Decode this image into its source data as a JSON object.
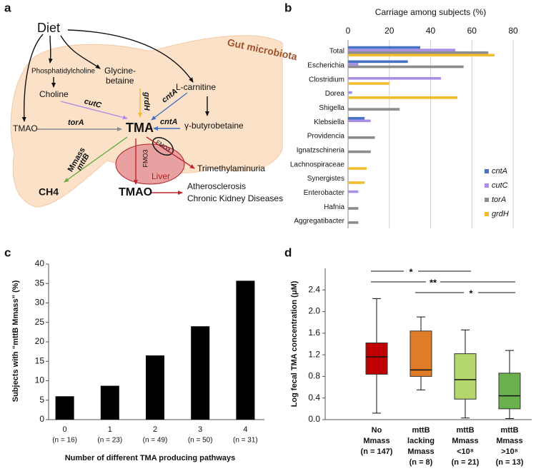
{
  "panels": [
    "a",
    "b",
    "c",
    "d"
  ],
  "diagram": {
    "nodes": [
      "Diet",
      "Gut microbiota",
      "Phosphatidylcholine",
      "Glycine-",
      "betaine",
      "Choline",
      "cutC",
      "grdH",
      "cntA",
      "L-carnitine",
      "γ-butyrobetaine",
      "TMAO",
      "torA",
      "TMA",
      "cntA",
      "Mmass",
      "mttB",
      "FMO3",
      "FMO3",
      "Liver",
      "Trimethylaminuria",
      "CH4",
      "TMAO",
      "Atherosclerosis",
      "Chronic Kidney Diseases"
    ]
  },
  "chart_data": [
    {
      "type": "bar",
      "orientation": "horizontal",
      "title": "Carriage among subjects (%)",
      "categories": [
        "Total",
        "Escherichia",
        "Clostridium",
        "Dorea",
        "Shigella",
        "Klebsiella",
        "Providencia",
        "Ignatzschineria",
        "Lachnospiraceae",
        "Synergistes",
        "Enterobacter",
        "Hafnia",
        "Aggregatibacter"
      ],
      "series": [
        {
          "name": "cntA",
          "color": "#4472c4",
          "values": [
            35,
            29,
            null,
            null,
            null,
            8,
            null,
            null,
            null,
            null,
            null,
            null,
            null
          ]
        },
        {
          "name": "cutC",
          "color": "#a98ee6",
          "values": [
            52,
            5,
            45,
            2,
            null,
            11,
            null,
            null,
            null,
            null,
            5,
            null,
            null
          ]
        },
        {
          "name": "torA",
          "color": "#8c8c8c",
          "values": [
            68,
            56,
            null,
            null,
            25,
            null,
            13,
            11,
            null,
            null,
            null,
            5,
            5
          ]
        },
        {
          "name": "grdH",
          "color": "#f2bc2c",
          "values": [
            71,
            null,
            20,
            53,
            null,
            null,
            null,
            null,
            9,
            8,
            null,
            null,
            null
          ]
        }
      ],
      "xlim": [
        0,
        80
      ],
      "xticks": [
        0,
        20,
        40,
        60,
        80
      ],
      "grid": true,
      "legend": "lower right"
    },
    {
      "type": "bar",
      "categories": [
        "0",
        "1",
        "2",
        "3",
        "4"
      ],
      "sublabels": [
        "(n = 16)",
        "(n = 23)",
        "(n = 49)",
        "(n = 50)",
        "(n = 31)"
      ],
      "values": [
        6,
        8.7,
        16.5,
        24,
        35.7
      ],
      "color": "#000000",
      "xlabel": "Number of different TMA producing pathways",
      "ylabel": "Subjects with “mttB Mmass” (%)",
      "ylim": [
        0,
        40
      ],
      "yticks": [
        0,
        5,
        10,
        15,
        20,
        25,
        30,
        35,
        40
      ],
      "grid": false
    },
    {
      "type": "box",
      "categories": [
        [
          "No",
          "Mmass",
          "(n = 147)"
        ],
        [
          "mttB",
          "lacking",
          "Mmass",
          "(n = 8)"
        ],
        [
          "mttB",
          "Mmass",
          "<10⁸",
          "(n = 21)"
        ],
        [
          "mttB",
          "Mmass",
          ">10⁸",
          "(n = 13)"
        ]
      ],
      "boxes": [
        {
          "low": 0.12,
          "q1": 0.84,
          "median": 1.16,
          "q3": 1.42,
          "high": 2.24,
          "color": "#c00000"
        },
        {
          "low": 0.55,
          "q1": 0.8,
          "median": 0.92,
          "q3": 1.64,
          "high": 1.9,
          "color": "#e07b27"
        },
        {
          "low": 0.03,
          "q1": 0.38,
          "median": 0.74,
          "q3": 1.22,
          "high": 1.66,
          "color": "#b5d66a"
        },
        {
          "low": 0.02,
          "q1": 0.2,
          "median": 0.44,
          "q3": 0.86,
          "high": 1.28,
          "color": "#6ab04c"
        }
      ],
      "significance": [
        "*",
        "**",
        "*"
      ],
      "ylabel": "Log fecal TMA concentration (μM)",
      "ylim": [
        0,
        2.8
      ],
      "yticks": [
        {
          "value": 0,
          "label": "0.0"
        },
        0.4,
        0.8,
        1.2,
        1.6,
        {
          "value": 2,
          "label": "2.0"
        },
        2.4
      ],
      "grid": false
    }
  ]
}
